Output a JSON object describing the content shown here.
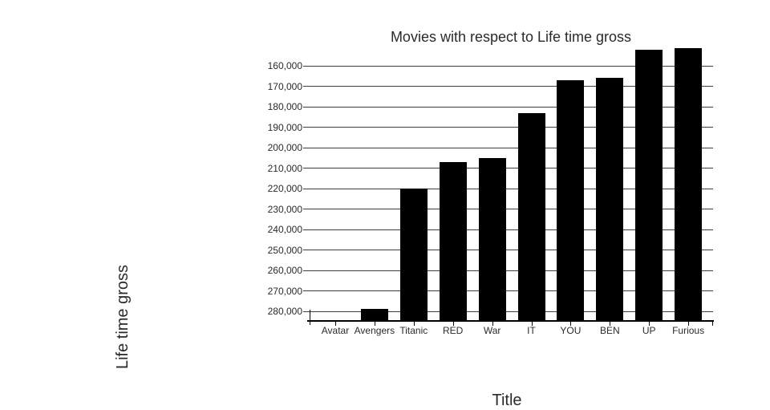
{
  "chart_data": {
    "type": "bar",
    "title": "Movies with respect to Life time gross",
    "xlabel": "Title",
    "ylabel": "Life time gross",
    "categories": [
      "Avatar",
      "Avengers",
      "Titanic",
      "RED",
      "War",
      "IT",
      "YOU",
      "BEN",
      "UP",
      "Furious"
    ],
    "values": [
      285000,
      279000,
      220000,
      207000,
      205000,
      183000,
      167000,
      166000,
      152200,
      151500
    ],
    "bar_color": "#000000",
    "text_color": "#2b2b2b",
    "grid_color": "#3d3d3d",
    "grid": true,
    "legend": false,
    "y_axis": {
      "reversed": true,
      "tick_start": 160000,
      "tick_step": 10000,
      "tick_labels": [
        "160,000",
        "170,000",
        "180,000",
        "190,000",
        "200,000",
        "210,000",
        "220,000",
        "230,000",
        "240,000",
        "250,000",
        "260,000",
        "270,000",
        "280,000"
      ],
      "visible_range_bottom_to_top": [
        285000,
        150500
      ]
    }
  }
}
